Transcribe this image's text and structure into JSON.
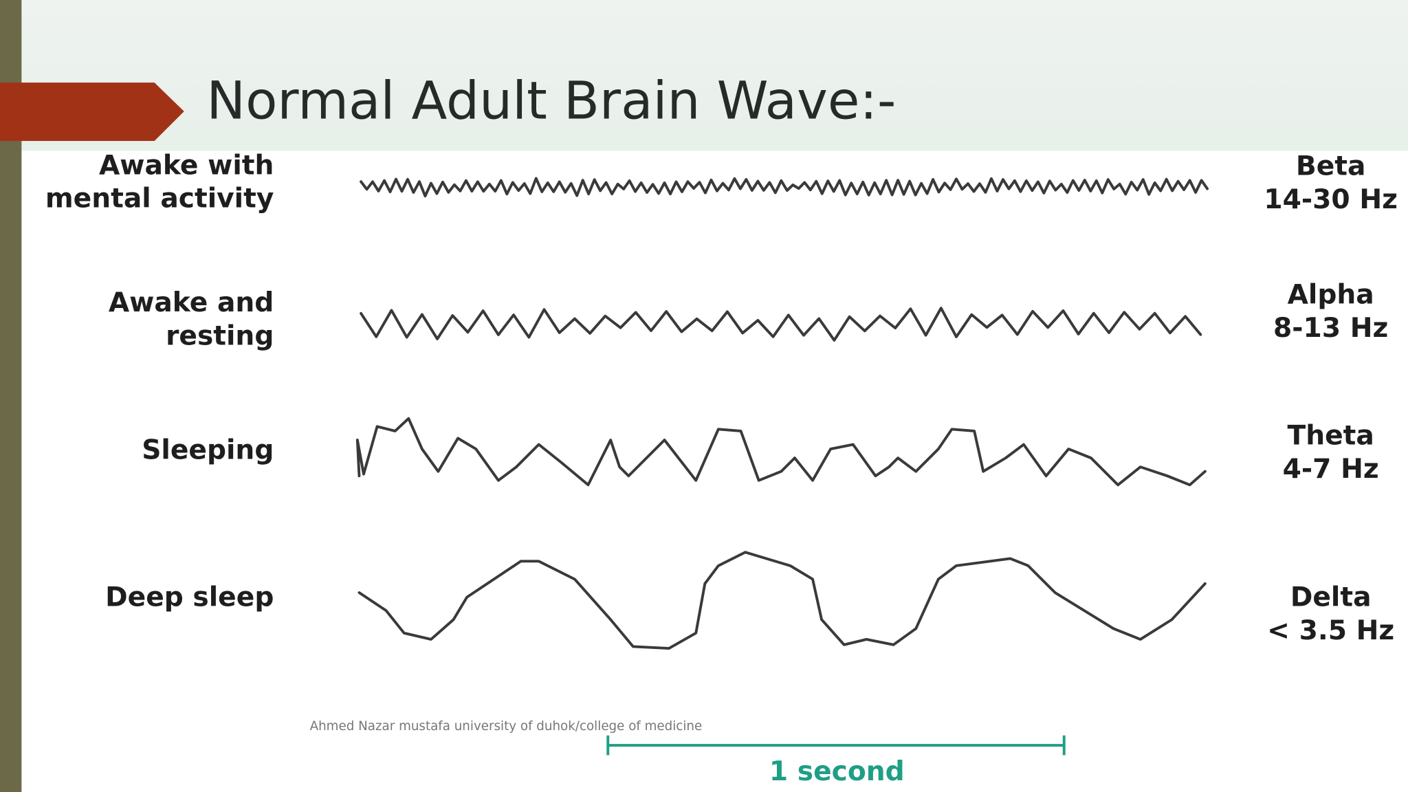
{
  "header": {
    "title": "Normal Adult Brain Wave:-"
  },
  "rows": [
    {
      "state": [
        "Awake with",
        "mental activity"
      ],
      "band": "Beta",
      "frequency": "14-30 Hz"
    },
    {
      "state": [
        "Awake and",
        "resting"
      ],
      "band": "Alpha",
      "frequency": "8-13 Hz"
    },
    {
      "state": [
        "Sleeping"
      ],
      "band": "Theta",
      "frequency": "4-7 Hz"
    },
    {
      "state": [
        "Deep sleep"
      ],
      "band": "Delta",
      "frequency": "< 3.5 Hz"
    }
  ],
  "footer": "Ahmed Nazar mustafa university of duhok/college of medicine",
  "scale": {
    "label": "1 second"
  }
}
